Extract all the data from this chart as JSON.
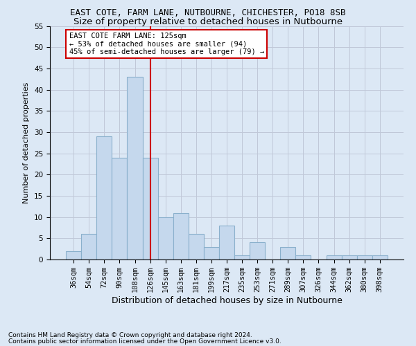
{
  "title1": "EAST COTE, FARM LANE, NUTBOURNE, CHICHESTER, PO18 8SB",
  "title2": "Size of property relative to detached houses in Nutbourne",
  "xlabel": "Distribution of detached houses by size in Nutbourne",
  "ylabel": "Number of detached properties",
  "categories": [
    "36sqm",
    "54sqm",
    "72sqm",
    "90sqm",
    "108sqm",
    "126sqm",
    "145sqm",
    "163sqm",
    "181sqm",
    "199sqm",
    "217sqm",
    "235sqm",
    "253sqm",
    "271sqm",
    "289sqm",
    "307sqm",
    "326sqm",
    "344sqm",
    "362sqm",
    "380sqm",
    "398sqm"
  ],
  "values": [
    2,
    6,
    29,
    24,
    43,
    24,
    10,
    11,
    6,
    3,
    8,
    1,
    4,
    0,
    3,
    1,
    0,
    1,
    1,
    1,
    1
  ],
  "bar_color": "#c5d8ed",
  "bar_edge_color": "#8ab0cc",
  "bar_linewidth": 0.8,
  "vline_x": 5,
  "vline_color": "#cc0000",
  "vline_linewidth": 1.5,
  "annotation_text": "EAST COTE FARM LANE: 125sqm\n← 53% of detached houses are smaller (94)\n45% of semi-detached houses are larger (79) →",
  "annotation_box_color": "#cc0000",
  "annotation_bg": "#ffffff",
  "ylim": [
    0,
    55
  ],
  "yticks": [
    0,
    5,
    10,
    15,
    20,
    25,
    30,
    35,
    40,
    45,
    50,
    55
  ],
  "grid_color": "#c0c8d8",
  "background_color": "#dce8f5",
  "footer1": "Contains HM Land Registry data © Crown copyright and database right 2024.",
  "footer2": "Contains public sector information licensed under the Open Government Licence v3.0.",
  "title1_fontsize": 9,
  "title2_fontsize": 9.5,
  "xlabel_fontsize": 9,
  "ylabel_fontsize": 8,
  "tick_fontsize": 7.5,
  "footer_fontsize": 6.5,
  "annotation_fontsize": 7.5
}
